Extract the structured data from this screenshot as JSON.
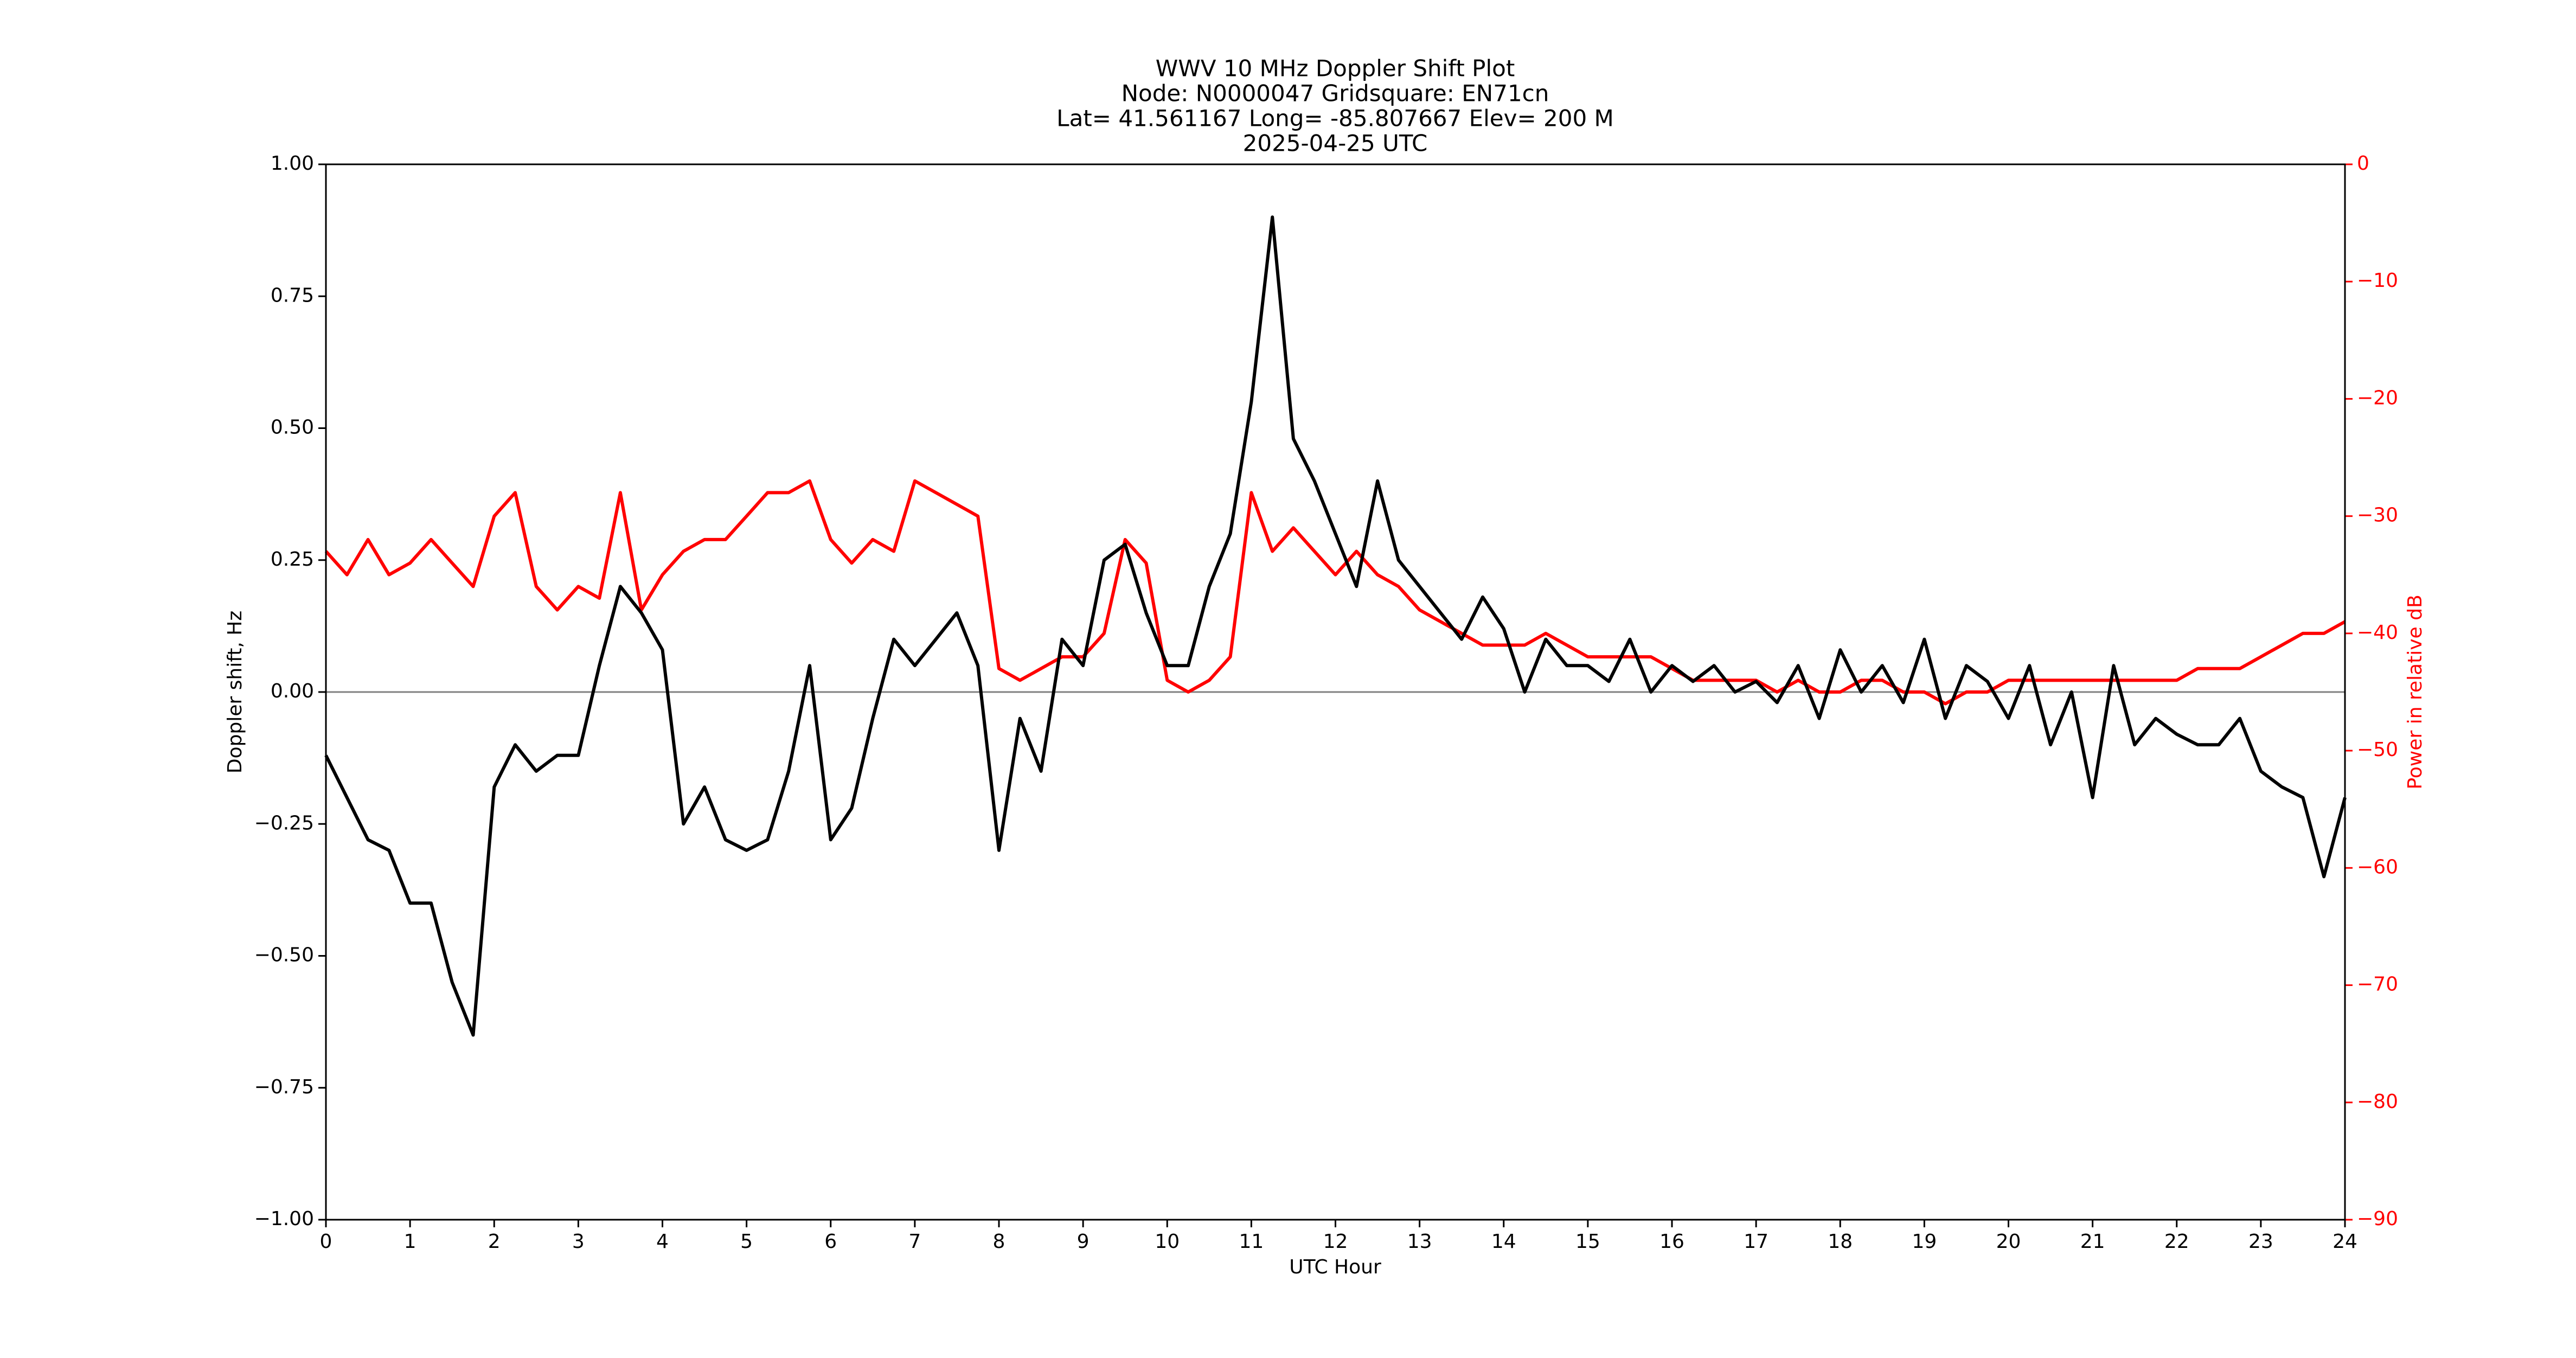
{
  "chart_data": {
    "type": "line",
    "title": [
      "WWV 10 MHz Doppler Shift Plot",
      "Node:  N0000047     Gridsquare:  EN71cn",
      "Lat= 41.561167    Long= -85.807667    Elev= 200 M",
      "2025-04-25  UTC"
    ],
    "xlabel": "UTC Hour",
    "ylabel": "Doppler shift, Hz",
    "y2label": "Power in relative dB",
    "xlim": [
      0,
      24
    ],
    "xticks": [
      0,
      1,
      2,
      3,
      4,
      5,
      6,
      7,
      8,
      9,
      10,
      11,
      12,
      13,
      14,
      15,
      16,
      17,
      18,
      19,
      20,
      21,
      22,
      23,
      24
    ],
    "ylim": [
      -1,
      1
    ],
    "yticks": [
      {
        "value": -1,
        "label": "−1.00"
      },
      {
        "value": -0.75,
        "label": "−0.75"
      },
      {
        "value": -0.5,
        "label": "−0.50"
      },
      {
        "value": -0.25,
        "label": "−0.25"
      },
      {
        "value": 0,
        "label": "0.00"
      },
      {
        "value": 0.25,
        "label": "0.25"
      },
      {
        "value": 0.5,
        "label": "0.50"
      },
      {
        "value": 0.75,
        "label": "0.75"
      },
      {
        "value": 1,
        "label": "1.00"
      }
    ],
    "y2lim": [
      -90,
      0
    ],
    "y2ticks": [
      {
        "value": -90,
        "label": "−90"
      },
      {
        "value": -80,
        "label": "−80"
      },
      {
        "value": -70,
        "label": "−70"
      },
      {
        "value": -60,
        "label": "−60"
      },
      {
        "value": -50,
        "label": "−50"
      },
      {
        "value": -40,
        "label": "−40"
      },
      {
        "value": -30,
        "label": "−30"
      },
      {
        "value": -20,
        "label": "−20"
      },
      {
        "value": -10,
        "label": "−10"
      },
      0
    ],
    "reference_line": 0,
    "x": [
      0,
      0.25,
      0.5,
      0.75,
      1,
      1.25,
      1.5,
      1.75,
      2,
      2.25,
      2.5,
      2.75,
      3,
      3.25,
      3.5,
      3.75,
      4,
      4.25,
      4.5,
      4.75,
      5,
      5.25,
      5.5,
      5.75,
      6,
      6.25,
      6.5,
      6.75,
      7,
      7.25,
      7.5,
      7.75,
      8,
      8.25,
      8.5,
      8.75,
      9,
      9.25,
      9.5,
      9.75,
      10,
      10.25,
      10.5,
      10.75,
      11,
      11.25,
      11.5,
      11.75,
      12,
      12.25,
      12.5,
      12.75,
      13,
      13.25,
      13.5,
      13.75,
      14,
      14.25,
      14.5,
      14.75,
      15,
      15.25,
      15.5,
      15.75,
      16,
      16.25,
      16.5,
      16.75,
      17,
      17.25,
      17.5,
      17.75,
      18,
      18.25,
      18.5,
      18.75,
      19,
      19.25,
      19.5,
      19.75,
      20,
      20.25,
      20.5,
      20.75,
      21,
      21.25,
      21.5,
      21.75,
      22,
      22.25,
      22.5,
      22.75,
      23,
      23.25,
      23.5,
      23.75,
      24
    ],
    "series": [
      {
        "color": "#000000",
        "values": [
          -0.12,
          -0.2,
          -0.28,
          -0.3,
          -0.4,
          -0.4,
          -0.55,
          -0.65,
          -0.18,
          -0.1,
          -0.15,
          -0.12,
          -0.12,
          0.05,
          0.2,
          0.15,
          0.08,
          -0.25,
          -0.18,
          -0.28,
          -0.3,
          -0.28,
          -0.15,
          0.05,
          -0.28,
          -0.22,
          -0.05,
          0.1,
          0.05,
          0.1,
          0.15,
          0.05,
          -0.3,
          -0.05,
          -0.15,
          0.1,
          0.05,
          0.25,
          0.28,
          0.15,
          0.05,
          0.05,
          0.2,
          0.3,
          0.55,
          0.9,
          0.48,
          0.4,
          0.3,
          0.2,
          0.4,
          0.25,
          0.2,
          0.15,
          0.1,
          0.18,
          0.12,
          0,
          0.1,
          0.05,
          0.05,
          0.02,
          0.1,
          0,
          0.05,
          0.02,
          0.05,
          0,
          0.02,
          -0.02,
          0.05,
          -0.05,
          0.08,
          0,
          0.05,
          -0.02,
          0.1,
          -0.05,
          0.05,
          0.02,
          -0.05,
          0.05,
          -0.1,
          0,
          -0.2,
          0.05,
          -0.1,
          -0.05,
          -0.08,
          -0.1,
          -0.1,
          -0.05,
          -0.15,
          -0.18,
          -0.2,
          -0.35,
          -0.2
        ]
      },
      {
        "color": "#ff0000",
        "axis": "y2",
        "values": [
          -33,
          -35,
          -32,
          -35,
          -34,
          -32,
          -34,
          -36,
          -30,
          -28,
          -36,
          -38,
          -36,
          -37,
          -28,
          -38,
          -35,
          -33,
          -32,
          -32,
          -30,
          -28,
          -28,
          -27,
          -32,
          -34,
          -32,
          -33,
          -27,
          -28,
          -29,
          -30,
          -43,
          -44,
          -43,
          -42,
          -42,
          -40,
          -32,
          -34,
          -44,
          -45,
          -44,
          -42,
          -28,
          -33,
          -31,
          -33,
          -35,
          -33,
          -35,
          -36,
          -38,
          -39,
          -40,
          -41,
          -41,
          -41,
          -40,
          -41,
          -42,
          -42,
          -42,
          -42,
          -43,
          -44,
          -44,
          -44,
          -44,
          -45,
          -44,
          -45,
          -45,
          -44,
          -44,
          -45,
          -45,
          -46,
          -45,
          -45,
          -44,
          -44,
          -44,
          -44,
          -44,
          -44,
          -44,
          -44,
          -44,
          -43,
          -43,
          -43,
          -42,
          -41,
          -40,
          -40,
          -39
        ]
      }
    ]
  }
}
